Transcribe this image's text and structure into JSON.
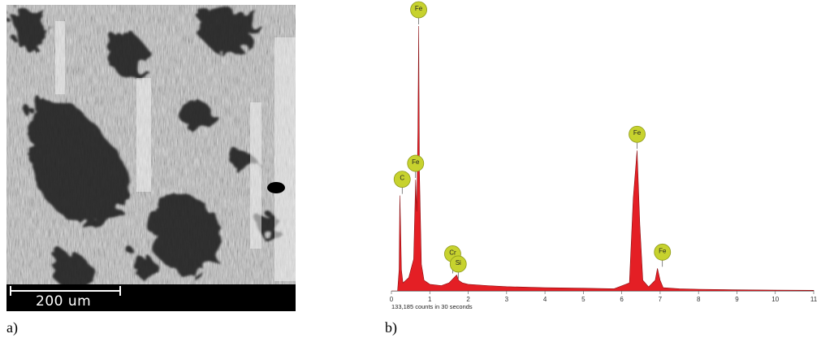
{
  "panel_a": {
    "label": "a)",
    "scale_bar_text": "200 um"
  },
  "panel_b": {
    "label": "b)",
    "counts_text": "133,185 counts in 30 seconds"
  },
  "chart_data": {
    "type": "area",
    "title": "",
    "xlabel": "",
    "ylabel": "",
    "xlim": [
      0,
      11
    ],
    "x_ticks": [
      0,
      1,
      2,
      3,
      4,
      5,
      6,
      7,
      8,
      9,
      10,
      11
    ],
    "fill_color": "#e41f25",
    "marker_color": "#c7d22e",
    "series": [
      {
        "values": [
          [
            0.0,
            0.0
          ],
          [
            0.16,
            0.0
          ],
          [
            0.2,
            0.08
          ],
          [
            0.22,
            0.36
          ],
          [
            0.24,
            0.24
          ],
          [
            0.26,
            0.08
          ],
          [
            0.3,
            0.03
          ],
          [
            0.45,
            0.05
          ],
          [
            0.58,
            0.12
          ],
          [
            0.63,
            0.42
          ],
          [
            0.66,
            0.3
          ],
          [
            0.69,
            0.6
          ],
          [
            0.71,
            1.0
          ],
          [
            0.73,
            0.45
          ],
          [
            0.78,
            0.1
          ],
          [
            0.85,
            0.04
          ],
          [
            1.0,
            0.025
          ],
          [
            1.3,
            0.02
          ],
          [
            1.5,
            0.03
          ],
          [
            1.63,
            0.05
          ],
          [
            1.7,
            0.06
          ],
          [
            1.75,
            0.04
          ],
          [
            1.85,
            0.03
          ],
          [
            2.0,
            0.025
          ],
          [
            2.5,
            0.02
          ],
          [
            3.0,
            0.016
          ],
          [
            4.0,
            0.012
          ],
          [
            5.0,
            0.01
          ],
          [
            5.8,
            0.008
          ],
          [
            6.2,
            0.03
          ],
          [
            6.3,
            0.35
          ],
          [
            6.4,
            0.53
          ],
          [
            6.47,
            0.25
          ],
          [
            6.55,
            0.04
          ],
          [
            6.7,
            0.015
          ],
          [
            6.87,
            0.04
          ],
          [
            6.93,
            0.085
          ],
          [
            7.0,
            0.04
          ],
          [
            7.08,
            0.012
          ],
          [
            7.5,
            0.008
          ],
          [
            8.0,
            0.006
          ],
          [
            9.0,
            0.004
          ],
          [
            10.0,
            0.003
          ],
          [
            11.0,
            0.002
          ]
        ]
      }
    ],
    "peaks": [
      {
        "element": "C",
        "x": 0.28,
        "y": 0.36
      },
      {
        "element": "Fe",
        "x": 0.71,
        "y": 1.0
      },
      {
        "element": "Fe",
        "x": 0.63,
        "y": 0.42
      },
      {
        "element": "Cr",
        "x": 1.68,
        "y": 0.06
      },
      {
        "element": "Si",
        "x": 1.74,
        "y": 0.04
      },
      {
        "element": "Fe",
        "x": 6.4,
        "y": 0.53
      },
      {
        "element": "Fe",
        "x": 7.06,
        "y": 0.085
      }
    ]
  }
}
